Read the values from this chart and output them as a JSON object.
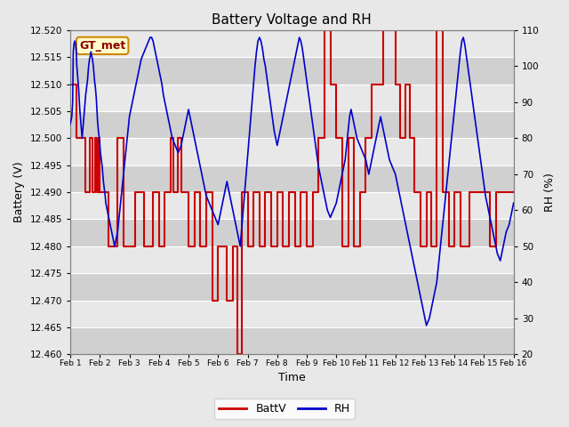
{
  "title": "Battery Voltage and RH",
  "xlabel": "Time",
  "ylabel_left": "Battery (V)",
  "ylabel_right": "RH (%)",
  "ylim_left": [
    12.46,
    12.52
  ],
  "ylim_right": [
    20,
    110
  ],
  "yticks_left": [
    12.46,
    12.465,
    12.47,
    12.475,
    12.48,
    12.485,
    12.49,
    12.495,
    12.5,
    12.505,
    12.51,
    12.515,
    12.52
  ],
  "yticks_right": [
    20,
    30,
    40,
    50,
    60,
    70,
    80,
    90,
    100,
    110
  ],
  "xtick_labels": [
    "Feb 1",
    "Feb 2",
    "Feb 3",
    "Feb 4",
    "Feb 5",
    "Feb 6",
    "Feb 7",
    "Feb 8",
    "Feb 9",
    "Feb 10",
    "Feb 11",
    "Feb 12",
    "Feb 13",
    "Feb 14",
    "Feb 15",
    "Feb 16"
  ],
  "legend_label1": "BattV",
  "legend_label2": "RH",
  "color_batt": "#cc0000",
  "color_rh": "#0000cc",
  "watermark": "GT_met",
  "bg_color": "#e8e8e8",
  "plot_bg_light": "#e8e8e8",
  "plot_bg_dark": "#d0d0d0",
  "batt_data": [
    [
      0.0,
      12.51
    ],
    [
      0.1,
      12.51
    ],
    [
      0.2,
      12.51
    ],
    [
      0.22,
      12.51
    ],
    [
      0.22,
      12.5
    ],
    [
      0.4,
      12.5
    ],
    [
      0.4,
      12.5
    ],
    [
      0.5,
      12.5
    ],
    [
      0.5,
      12.49
    ],
    [
      0.65,
      12.49
    ],
    [
      0.65,
      12.5
    ],
    [
      0.75,
      12.5
    ],
    [
      0.75,
      12.49
    ],
    [
      0.85,
      12.49
    ],
    [
      0.85,
      12.5
    ],
    [
      0.9,
      12.5
    ],
    [
      0.9,
      12.49
    ],
    [
      0.95,
      12.49
    ],
    [
      0.95,
      12.5
    ],
    [
      1.0,
      12.5
    ],
    [
      1.0,
      12.49
    ],
    [
      1.1,
      12.49
    ],
    [
      1.2,
      12.49
    ],
    [
      1.3,
      12.49
    ],
    [
      1.3,
      12.48
    ],
    [
      1.6,
      12.48
    ],
    [
      1.6,
      12.5
    ],
    [
      1.8,
      12.5
    ],
    [
      1.8,
      12.48
    ],
    [
      2.2,
      12.48
    ],
    [
      2.2,
      12.49
    ],
    [
      2.5,
      12.49
    ],
    [
      2.5,
      12.48
    ],
    [
      2.8,
      12.48
    ],
    [
      2.8,
      12.49
    ],
    [
      3.0,
      12.49
    ],
    [
      3.0,
      12.48
    ],
    [
      3.2,
      12.48
    ],
    [
      3.2,
      12.49
    ],
    [
      3.4,
      12.49
    ],
    [
      3.4,
      12.5
    ],
    [
      3.5,
      12.5
    ],
    [
      3.5,
      12.49
    ],
    [
      3.65,
      12.49
    ],
    [
      3.65,
      12.5
    ],
    [
      3.75,
      12.5
    ],
    [
      3.75,
      12.49
    ],
    [
      4.0,
      12.49
    ],
    [
      4.0,
      12.48
    ],
    [
      4.2,
      12.48
    ],
    [
      4.2,
      12.49
    ],
    [
      4.4,
      12.49
    ],
    [
      4.4,
      12.48
    ],
    [
      4.6,
      12.48
    ],
    [
      4.6,
      12.49
    ],
    [
      4.8,
      12.49
    ],
    [
      4.8,
      12.47
    ],
    [
      5.0,
      12.47
    ],
    [
      5.0,
      12.48
    ],
    [
      5.3,
      12.48
    ],
    [
      5.3,
      12.47
    ],
    [
      5.5,
      12.47
    ],
    [
      5.5,
      12.48
    ],
    [
      5.6,
      12.48
    ],
    [
      5.6,
      12.48
    ],
    [
      5.65,
      12.48
    ],
    [
      5.65,
      12.46
    ],
    [
      5.8,
      12.46
    ],
    [
      5.8,
      12.49
    ],
    [
      6.0,
      12.49
    ],
    [
      6.0,
      12.48
    ],
    [
      6.2,
      12.48
    ],
    [
      6.2,
      12.49
    ],
    [
      6.4,
      12.49
    ],
    [
      6.4,
      12.48
    ],
    [
      6.6,
      12.48
    ],
    [
      6.6,
      12.49
    ],
    [
      6.8,
      12.49
    ],
    [
      6.8,
      12.48
    ],
    [
      7.0,
      12.48
    ],
    [
      7.0,
      12.49
    ],
    [
      7.2,
      12.49
    ],
    [
      7.2,
      12.48
    ],
    [
      7.4,
      12.48
    ],
    [
      7.4,
      12.49
    ],
    [
      7.6,
      12.49
    ],
    [
      7.6,
      12.48
    ],
    [
      7.8,
      12.48
    ],
    [
      7.8,
      12.49
    ],
    [
      8.0,
      12.49
    ],
    [
      8.0,
      12.48
    ],
    [
      8.2,
      12.48
    ],
    [
      8.2,
      12.49
    ],
    [
      8.4,
      12.49
    ],
    [
      8.4,
      12.5
    ],
    [
      8.6,
      12.5
    ],
    [
      8.6,
      12.52
    ],
    [
      8.8,
      12.52
    ],
    [
      8.8,
      12.51
    ],
    [
      9.0,
      12.51
    ],
    [
      9.0,
      12.5
    ],
    [
      9.2,
      12.5
    ],
    [
      9.2,
      12.48
    ],
    [
      9.4,
      12.48
    ],
    [
      9.4,
      12.5
    ],
    [
      9.6,
      12.5
    ],
    [
      9.6,
      12.48
    ],
    [
      9.8,
      12.48
    ],
    [
      9.8,
      12.49
    ],
    [
      10.0,
      12.49
    ],
    [
      10.0,
      12.5
    ],
    [
      10.2,
      12.5
    ],
    [
      10.2,
      12.51
    ],
    [
      10.4,
      12.51
    ],
    [
      10.4,
      12.51
    ],
    [
      10.6,
      12.51
    ],
    [
      10.6,
      12.52
    ],
    [
      10.8,
      12.52
    ],
    [
      10.8,
      12.52
    ],
    [
      11.0,
      12.52
    ],
    [
      11.0,
      12.51
    ],
    [
      11.15,
      12.51
    ],
    [
      11.15,
      12.5
    ],
    [
      11.35,
      12.5
    ],
    [
      11.35,
      12.51
    ],
    [
      11.5,
      12.51
    ],
    [
      11.5,
      12.5
    ],
    [
      11.65,
      12.5
    ],
    [
      11.65,
      12.49
    ],
    [
      11.85,
      12.49
    ],
    [
      11.85,
      12.48
    ],
    [
      12.05,
      12.48
    ],
    [
      12.05,
      12.49
    ],
    [
      12.2,
      12.49
    ],
    [
      12.2,
      12.48
    ],
    [
      12.4,
      12.48
    ],
    [
      12.4,
      12.52
    ],
    [
      12.6,
      12.52
    ],
    [
      12.6,
      12.49
    ],
    [
      12.8,
      12.49
    ],
    [
      12.8,
      12.48
    ],
    [
      13.0,
      12.48
    ],
    [
      13.0,
      12.49
    ],
    [
      13.2,
      12.49
    ],
    [
      13.2,
      12.48
    ],
    [
      13.5,
      12.48
    ],
    [
      13.5,
      12.49
    ],
    [
      14.0,
      12.49
    ],
    [
      14.0,
      12.49
    ],
    [
      14.2,
      12.49
    ],
    [
      14.2,
      12.48
    ],
    [
      14.4,
      12.48
    ],
    [
      14.4,
      12.49
    ],
    [
      15.0,
      12.49
    ]
  ],
  "rh_data": [
    [
      0.0,
      84
    ],
    [
      0.05,
      86
    ],
    [
      0.08,
      90
    ],
    [
      0.1,
      104
    ],
    [
      0.12,
      106
    ],
    [
      0.15,
      107
    ],
    [
      0.18,
      106
    ],
    [
      0.2,
      104
    ],
    [
      0.22,
      100
    ],
    [
      0.25,
      97
    ],
    [
      0.28,
      94
    ],
    [
      0.3,
      91
    ],
    [
      0.32,
      88
    ],
    [
      0.35,
      85
    ],
    [
      0.38,
      82
    ],
    [
      0.4,
      80
    ],
    [
      0.42,
      82
    ],
    [
      0.44,
      84
    ],
    [
      0.46,
      86
    ],
    [
      0.48,
      88
    ],
    [
      0.5,
      90
    ],
    [
      0.52,
      92
    ],
    [
      0.55,
      94
    ],
    [
      0.58,
      96
    ],
    [
      0.6,
      98
    ],
    [
      0.62,
      100
    ],
    [
      0.65,
      102
    ],
    [
      0.68,
      103
    ],
    [
      0.7,
      104
    ],
    [
      0.72,
      103
    ],
    [
      0.75,
      102
    ],
    [
      0.78,
      100
    ],
    [
      0.8,
      98
    ],
    [
      0.82,
      96
    ],
    [
      0.85,
      94
    ],
    [
      0.88,
      91
    ],
    [
      0.9,
      88
    ],
    [
      0.92,
      85
    ],
    [
      0.95,
      82
    ],
    [
      0.98,
      80
    ],
    [
      1.0,
      78
    ],
    [
      1.02,
      76
    ],
    [
      1.05,
      74
    ],
    [
      1.08,
      72
    ],
    [
      1.1,
      70
    ],
    [
      1.12,
      68
    ],
    [
      1.15,
      66
    ],
    [
      1.18,
      64
    ],
    [
      1.2,
      62
    ],
    [
      1.25,
      60
    ],
    [
      1.3,
      58
    ],
    [
      1.35,
      56
    ],
    [
      1.4,
      54
    ],
    [
      1.45,
      52
    ],
    [
      1.5,
      50
    ],
    [
      1.55,
      52
    ],
    [
      1.6,
      54
    ],
    [
      1.65,
      58
    ],
    [
      1.7,
      62
    ],
    [
      1.75,
      66
    ],
    [
      1.8,
      70
    ],
    [
      1.85,
      74
    ],
    [
      1.9,
      78
    ],
    [
      1.95,
      82
    ],
    [
      2.0,
      86
    ],
    [
      2.05,
      88
    ],
    [
      2.1,
      90
    ],
    [
      2.15,
      92
    ],
    [
      2.2,
      94
    ],
    [
      2.25,
      96
    ],
    [
      2.3,
      98
    ],
    [
      2.35,
      100
    ],
    [
      2.4,
      102
    ],
    [
      2.45,
      103
    ],
    [
      2.5,
      104
    ],
    [
      2.55,
      105
    ],
    [
      2.6,
      106
    ],
    [
      2.65,
      107
    ],
    [
      2.7,
      108
    ],
    [
      2.75,
      108
    ],
    [
      2.8,
      107
    ],
    [
      2.85,
      105
    ],
    [
      2.9,
      103
    ],
    [
      2.95,
      101
    ],
    [
      3.0,
      99
    ],
    [
      3.05,
      97
    ],
    [
      3.1,
      95
    ],
    [
      3.15,
      92
    ],
    [
      3.2,
      90
    ],
    [
      3.25,
      88
    ],
    [
      3.3,
      86
    ],
    [
      3.35,
      84
    ],
    [
      3.4,
      82
    ],
    [
      3.45,
      80
    ],
    [
      3.5,
      79
    ],
    [
      3.55,
      78
    ],
    [
      3.6,
      77
    ],
    [
      3.65,
      76
    ],
    [
      3.7,
      77
    ],
    [
      3.75,
      78
    ],
    [
      3.8,
      80
    ],
    [
      3.85,
      82
    ],
    [
      3.9,
      84
    ],
    [
      3.95,
      86
    ],
    [
      4.0,
      88
    ],
    [
      4.05,
      86
    ],
    [
      4.1,
      84
    ],
    [
      4.15,
      82
    ],
    [
      4.2,
      80
    ],
    [
      4.25,
      78
    ],
    [
      4.3,
      76
    ],
    [
      4.35,
      74
    ],
    [
      4.4,
      72
    ],
    [
      4.45,
      70
    ],
    [
      4.5,
      68
    ],
    [
      4.55,
      66
    ],
    [
      4.6,
      64
    ],
    [
      4.65,
      63
    ],
    [
      4.7,
      62
    ],
    [
      4.75,
      61
    ],
    [
      4.8,
      60
    ],
    [
      4.85,
      59
    ],
    [
      4.9,
      58
    ],
    [
      4.95,
      57
    ],
    [
      5.0,
      56
    ],
    [
      5.05,
      58
    ],
    [
      5.1,
      60
    ],
    [
      5.15,
      62
    ],
    [
      5.2,
      64
    ],
    [
      5.25,
      66
    ],
    [
      5.3,
      68
    ],
    [
      5.35,
      66
    ],
    [
      5.4,
      64
    ],
    [
      5.45,
      62
    ],
    [
      5.5,
      60
    ],
    [
      5.55,
      58
    ],
    [
      5.6,
      56
    ],
    [
      5.65,
      54
    ],
    [
      5.7,
      52
    ],
    [
      5.75,
      50
    ],
    [
      5.8,
      55
    ],
    [
      5.85,
      60
    ],
    [
      5.9,
      65
    ],
    [
      5.95,
      70
    ],
    [
      6.0,
      75
    ],
    [
      6.05,
      80
    ],
    [
      6.1,
      85
    ],
    [
      6.15,
      90
    ],
    [
      6.2,
      95
    ],
    [
      6.25,
      100
    ],
    [
      6.3,
      104
    ],
    [
      6.35,
      107
    ],
    [
      6.4,
      108
    ],
    [
      6.45,
      107
    ],
    [
      6.5,
      105
    ],
    [
      6.55,
      102
    ],
    [
      6.6,
      100
    ],
    [
      6.65,
      97
    ],
    [
      6.7,
      94
    ],
    [
      6.75,
      91
    ],
    [
      6.8,
      88
    ],
    [
      6.85,
      85
    ],
    [
      6.9,
      82
    ],
    [
      6.95,
      80
    ],
    [
      7.0,
      78
    ],
    [
      7.05,
      80
    ],
    [
      7.1,
      82
    ],
    [
      7.15,
      84
    ],
    [
      7.2,
      86
    ],
    [
      7.25,
      88
    ],
    [
      7.3,
      90
    ],
    [
      7.35,
      92
    ],
    [
      7.4,
      94
    ],
    [
      7.45,
      96
    ],
    [
      7.5,
      98
    ],
    [
      7.55,
      100
    ],
    [
      7.6,
      102
    ],
    [
      7.65,
      104
    ],
    [
      7.7,
      106
    ],
    [
      7.75,
      108
    ],
    [
      7.8,
      107
    ],
    [
      7.85,
      105
    ],
    [
      7.9,
      102
    ],
    [
      7.95,
      99
    ],
    [
      8.0,
      96
    ],
    [
      8.05,
      93
    ],
    [
      8.1,
      90
    ],
    [
      8.15,
      87
    ],
    [
      8.2,
      84
    ],
    [
      8.25,
      81
    ],
    [
      8.3,
      78
    ],
    [
      8.35,
      75
    ],
    [
      8.4,
      72
    ],
    [
      8.45,
      70
    ],
    [
      8.5,
      68
    ],
    [
      8.55,
      66
    ],
    [
      8.6,
      64
    ],
    [
      8.65,
      62
    ],
    [
      8.7,
      60
    ],
    [
      8.8,
      58
    ],
    [
      8.9,
      60
    ],
    [
      9.0,
      62
    ],
    [
      9.05,
      64
    ],
    [
      9.1,
      66
    ],
    [
      9.15,
      68
    ],
    [
      9.2,
      70
    ],
    [
      9.25,
      72
    ],
    [
      9.3,
      74
    ],
    [
      9.35,
      78
    ],
    [
      9.4,
      82
    ],
    [
      9.45,
      86
    ],
    [
      9.5,
      88
    ],
    [
      9.55,
      86
    ],
    [
      9.6,
      84
    ],
    [
      9.65,
      82
    ],
    [
      9.7,
      80
    ],
    [
      9.8,
      78
    ],
    [
      9.9,
      76
    ],
    [
      10.0,
      74
    ],
    [
      10.05,
      72
    ],
    [
      10.1,
      70
    ],
    [
      10.15,
      72
    ],
    [
      10.2,
      74
    ],
    [
      10.25,
      76
    ],
    [
      10.3,
      78
    ],
    [
      10.35,
      80
    ],
    [
      10.4,
      82
    ],
    [
      10.45,
      84
    ],
    [
      10.5,
      86
    ],
    [
      10.55,
      84
    ],
    [
      10.6,
      82
    ],
    [
      10.65,
      80
    ],
    [
      10.7,
      78
    ],
    [
      10.75,
      76
    ],
    [
      10.8,
      74
    ],
    [
      10.9,
      72
    ],
    [
      11.0,
      70
    ],
    [
      11.05,
      68
    ],
    [
      11.1,
      66
    ],
    [
      11.15,
      64
    ],
    [
      11.2,
      62
    ],
    [
      11.25,
      60
    ],
    [
      11.3,
      58
    ],
    [
      11.35,
      56
    ],
    [
      11.4,
      54
    ],
    [
      11.45,
      52
    ],
    [
      11.5,
      50
    ],
    [
      11.55,
      48
    ],
    [
      11.6,
      46
    ],
    [
      11.65,
      44
    ],
    [
      11.7,
      42
    ],
    [
      11.75,
      40
    ],
    [
      11.8,
      38
    ],
    [
      11.85,
      36
    ],
    [
      11.9,
      34
    ],
    [
      11.95,
      32
    ],
    [
      12.0,
      30
    ],
    [
      12.05,
      28
    ],
    [
      12.1,
      29
    ],
    [
      12.15,
      30
    ],
    [
      12.2,
      32
    ],
    [
      12.25,
      34
    ],
    [
      12.3,
      36
    ],
    [
      12.35,
      38
    ],
    [
      12.4,
      40
    ],
    [
      12.45,
      44
    ],
    [
      12.5,
      48
    ],
    [
      12.55,
      52
    ],
    [
      12.6,
      56
    ],
    [
      12.65,
      60
    ],
    [
      12.7,
      64
    ],
    [
      12.75,
      68
    ],
    [
      12.8,
      72
    ],
    [
      12.85,
      76
    ],
    [
      12.9,
      80
    ],
    [
      12.95,
      84
    ],
    [
      13.0,
      88
    ],
    [
      13.05,
      92
    ],
    [
      13.1,
      96
    ],
    [
      13.15,
      100
    ],
    [
      13.2,
      104
    ],
    [
      13.25,
      107
    ],
    [
      13.3,
      108
    ],
    [
      13.35,
      106
    ],
    [
      13.4,
      103
    ],
    [
      13.45,
      100
    ],
    [
      13.5,
      97
    ],
    [
      13.55,
      94
    ],
    [
      13.6,
      91
    ],
    [
      13.65,
      88
    ],
    [
      13.7,
      85
    ],
    [
      13.75,
      82
    ],
    [
      13.8,
      79
    ],
    [
      13.85,
      76
    ],
    [
      13.9,
      73
    ],
    [
      13.95,
      70
    ],
    [
      14.0,
      67
    ],
    [
      14.05,
      64
    ],
    [
      14.1,
      62
    ],
    [
      14.15,
      60
    ],
    [
      14.2,
      58
    ],
    [
      14.25,
      56
    ],
    [
      14.3,
      54
    ],
    [
      14.35,
      52
    ],
    [
      14.4,
      50
    ],
    [
      14.45,
      48
    ],
    [
      14.5,
      47
    ],
    [
      14.55,
      46
    ],
    [
      14.6,
      48
    ],
    [
      14.65,
      50
    ],
    [
      14.7,
      52
    ],
    [
      14.75,
      54
    ],
    [
      14.8,
      55
    ],
    [
      14.85,
      56
    ],
    [
      14.9,
      58
    ],
    [
      14.95,
      60
    ],
    [
      15.0,
      62
    ]
  ]
}
